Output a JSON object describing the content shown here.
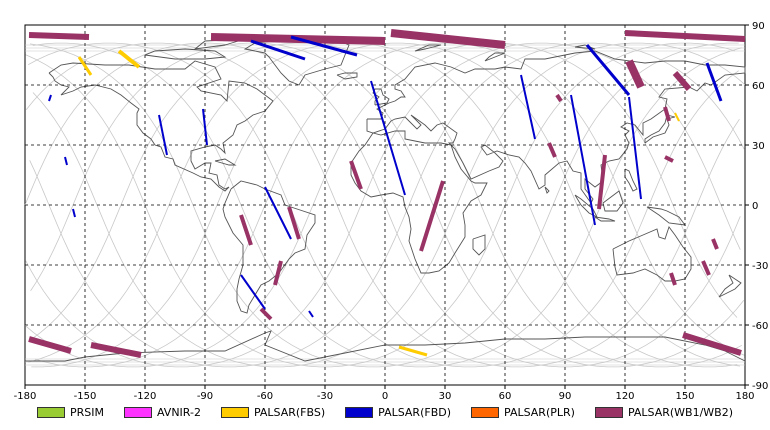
{
  "map": {
    "lon_range": [
      -180,
      180
    ],
    "lat_range": [
      -90,
      90
    ],
    "x_ticks": [
      -180,
      -150,
      -120,
      -90,
      -60,
      -30,
      0,
      30,
      60,
      90,
      120,
      150,
      180
    ],
    "y_ticks": [
      90,
      60,
      30,
      0,
      -30,
      -60,
      -90
    ],
    "x_tick_labels": [
      "-180",
      "-150",
      "-120",
      "-90",
      "-60",
      "-30",
      "0",
      "30",
      "60",
      "90",
      "120",
      "150",
      "180"
    ],
    "y_tick_labels": [
      "90",
      "60",
      "30",
      "0",
      "-30",
      "-60",
      "-90"
    ],
    "grid": "dashed",
    "orbit_color": "#c8c8c8",
    "coast_color": "#555555"
  },
  "legend": {
    "items": [
      {
        "label": "PRSIM",
        "color": "#99cc33"
      },
      {
        "label": "AVNIR-2",
        "color": "#ff33ff"
      },
      {
        "label": "PALSAR(FBS)",
        "color": "#ffcc00"
      },
      {
        "label": "PALSAR(FBD)",
        "color": "#0000cc"
      },
      {
        "label": "PALSAR(PLR)",
        "color": "#ff6600"
      },
      {
        "label": "PALSAR(WB1/WB2)",
        "color": "#993366"
      }
    ]
  },
  "chart_data": {
    "type": "map",
    "xlim": [
      -180,
      180
    ],
    "ylim": [
      -90,
      90
    ],
    "series": [
      {
        "name": "PALSAR(WB1/WB2)",
        "color": "#993366",
        "swaths": [
          {
            "lon": [
              -178,
              -148
            ],
            "lat": [
              85,
              84
            ],
            "width": 6
          },
          {
            "lon": [
              -87,
              0
            ],
            "lat": [
              84,
              82
            ],
            "width": 8
          },
          {
            "lon": [
              3,
              60
            ],
            "lat": [
              86,
              80
            ],
            "width": 8
          },
          {
            "lon": [
              120,
              180
            ],
            "lat": [
              86,
              83
            ],
            "width": 6
          },
          {
            "lon": [
              -17,
              -12
            ],
            "lat": [
              22,
              8
            ],
            "width": 4
          },
          {
            "lon": [
              29,
              18
            ],
            "lat": [
              12,
              -23
            ],
            "width": 4
          },
          {
            "lon": [
              -72,
              -67
            ],
            "lat": [
              -5,
              -20
            ],
            "width": 4
          },
          {
            "lon": [
              -48,
              -43
            ],
            "lat": [
              -1,
              -17
            ],
            "width": 4
          },
          {
            "lon": [
              -52,
              -55
            ],
            "lat": [
              -28,
              -40
            ],
            "width": 4
          },
          {
            "lon": [
              -62,
              -57
            ],
            "lat": [
              -52,
              -57
            ],
            "width": 4
          },
          {
            "lon": [
              110,
              107
            ],
            "lat": [
              25,
              -2
            ],
            "width": 4
          },
          {
            "lon": [
              86,
              88
            ],
            "lat": [
              55,
              52
            ],
            "width": 4
          },
          {
            "lon": [
              82,
              85
            ],
            "lat": [
              31,
              24
            ],
            "width": 4
          },
          {
            "lon": [
              122,
              128
            ],
            "lat": [
              72,
              59
            ],
            "width": 8
          },
          {
            "lon": [
              140,
              142
            ],
            "lat": [
              49,
              42
            ],
            "width": 4
          },
          {
            "lon": [
              140,
              144
            ],
            "lat": [
              24,
              22
            ],
            "width": 4
          },
          {
            "lon": [
              143,
              145
            ],
            "lat": [
              -34,
              -40
            ],
            "width": 4
          },
          {
            "lon": [
              159,
              162
            ],
            "lat": [
              -28,
              -35
            ],
            "width": 4
          },
          {
            "lon": [
              164,
              166
            ],
            "lat": [
              -17,
              -22
            ],
            "width": 4
          },
          {
            "lon": [
              -178,
              -157
            ],
            "lat": [
              -67,
              -73
            ],
            "width": 6
          },
          {
            "lon": [
              -147,
              -122
            ],
            "lat": [
              -70,
              -75
            ],
            "width": 6
          },
          {
            "lon": [
              149,
              178
            ],
            "lat": [
              -65,
              -74
            ],
            "width": 6
          },
          {
            "lon": [
              145,
              152
            ],
            "lat": [
              66,
              58
            ],
            "width": 6
          }
        ]
      },
      {
        "name": "PALSAR(FBD)",
        "color": "#0000cc",
        "swaths": [
          {
            "lon": [
              -67,
              -40
            ],
            "lat": [
              82,
              73
            ],
            "width": 3
          },
          {
            "lon": [
              -47,
              -14
            ],
            "lat": [
              84,
              75
            ],
            "width": 3
          },
          {
            "lon": [
              -7,
              10
            ],
            "lat": [
              62,
              5
            ],
            "width": 2
          },
          {
            "lon": [
              68,
              75
            ],
            "lat": [
              65,
              33
            ],
            "width": 2
          },
          {
            "lon": [
              101,
              122
            ],
            "lat": [
              80,
              55
            ],
            "width": 3
          },
          {
            "lon": [
              122,
              128
            ],
            "lat": [
              54,
              3
            ],
            "width": 2
          },
          {
            "lon": [
              -113,
              -109
            ],
            "lat": [
              45,
              25
            ],
            "width": 2
          },
          {
            "lon": [
              -91,
              -89
            ],
            "lat": [
              48,
              30
            ],
            "width": 2
          },
          {
            "lon": [
              -60,
              -47
            ],
            "lat": [
              9,
              -17
            ],
            "width": 2
          },
          {
            "lon": [
              -72,
              -60
            ],
            "lat": [
              -35,
              -52
            ],
            "width": 2
          },
          {
            "lon": [
              -167,
              -168
            ],
            "lat": [
              55,
              52
            ],
            "width": 2
          },
          {
            "lon": [
              -160,
              -159
            ],
            "lat": [
              24,
              20
            ],
            "width": 2
          },
          {
            "lon": [
              -156,
              -155
            ],
            "lat": [
              -2,
              -6
            ],
            "width": 2
          },
          {
            "lon": [
              93,
              105
            ],
            "lat": [
              55,
              -10
            ],
            "width": 2
          },
          {
            "lon": [
              161,
              168
            ],
            "lat": [
              71,
              52
            ],
            "width": 3
          },
          {
            "lon": [
              -38,
              -36
            ],
            "lat": [
              -53,
              -56
            ],
            "width": 2
          }
        ]
      },
      {
        "name": "PALSAR(FBS)",
        "color": "#ffcc00",
        "swaths": [
          {
            "lon": [
              -153,
              -147
            ],
            "lat": [
              74,
              65
            ],
            "width": 3
          },
          {
            "lon": [
              -133,
              -123
            ],
            "lat": [
              77,
              69
            ],
            "width": 4
          },
          {
            "lon": [
              7,
              21
            ],
            "lat": [
              -71,
              -75
            ],
            "width": 3
          },
          {
            "lon": [
              145,
              147
            ],
            "lat": [
              46,
              42
            ],
            "width": 2
          }
        ]
      }
    ],
    "coastline_note": "world coastlines (equirectangular)"
  }
}
